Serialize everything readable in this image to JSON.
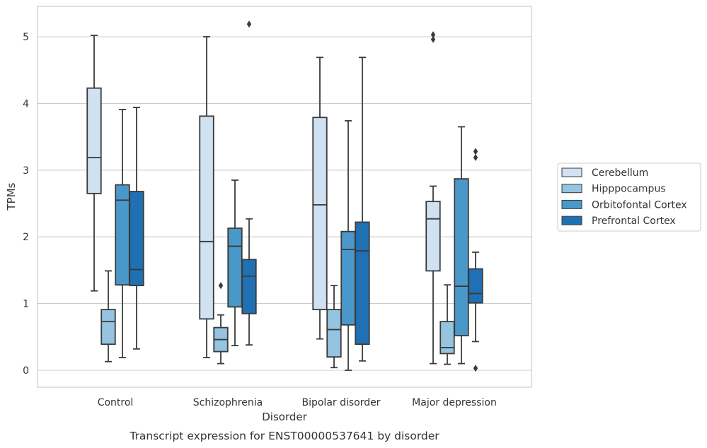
{
  "caption": "Transcript expression for ENST00000537641 by disorder",
  "chart_data": {
    "type": "boxplot",
    "xlabel": "Disorder",
    "ylabel": "TPMs",
    "ylim": [
      -0.25,
      5.45
    ],
    "yticks": [
      0,
      1,
      2,
      3,
      4,
      5
    ],
    "grid": "horizontal",
    "legend_position": "right",
    "categories": [
      "Control",
      "Schizophrenia",
      "Bipolar disorder",
      "Major depression"
    ],
    "series": [
      {
        "name": "Cerebellum",
        "color": "#d0e1f2",
        "boxes": [
          {
            "whislo": 1.19,
            "q1": 2.65,
            "med": 3.19,
            "q3": 4.23,
            "whishi": 5.02,
            "fliers": []
          },
          {
            "whislo": 0.19,
            "q1": 0.77,
            "med": 1.93,
            "q3": 3.81,
            "whishi": 5.0,
            "fliers": []
          },
          {
            "whislo": 0.47,
            "q1": 0.91,
            "med": 2.48,
            "q3": 3.79,
            "whishi": 4.69,
            "fliers": []
          },
          {
            "whislo": 0.1,
            "q1": 1.49,
            "med": 2.27,
            "q3": 2.53,
            "whishi": 2.76,
            "fliers": [
              4.96,
              5.03
            ]
          }
        ]
      },
      {
        "name": "Hipppocampus",
        "color": "#94c4df",
        "boxes": [
          {
            "whislo": 0.13,
            "q1": 0.39,
            "med": 0.73,
            "q3": 0.91,
            "whishi": 1.49,
            "fliers": []
          },
          {
            "whislo": 0.1,
            "q1": 0.28,
            "med": 0.46,
            "q3": 0.64,
            "whishi": 0.83,
            "fliers": [
              1.27
            ]
          },
          {
            "whislo": 0.04,
            "q1": 0.2,
            "med": 0.61,
            "q3": 0.91,
            "whishi": 1.27,
            "fliers": []
          },
          {
            "whislo": 0.09,
            "q1": 0.25,
            "med": 0.34,
            "q3": 0.73,
            "whishi": 1.28,
            "fliers": []
          }
        ]
      },
      {
        "name": "Orbitofontal Cortex",
        "color": "#4a98c9",
        "boxes": [
          {
            "whislo": 0.19,
            "q1": 1.28,
            "med": 2.55,
            "q3": 2.78,
            "whishi": 3.91,
            "fliers": []
          },
          {
            "whislo": 0.37,
            "q1": 0.95,
            "med": 1.86,
            "q3": 2.13,
            "whishi": 2.85,
            "fliers": []
          },
          {
            "whislo": 0.0,
            "q1": 0.68,
            "med": 1.81,
            "q3": 2.08,
            "whishi": 3.74,
            "fliers": []
          },
          {
            "whislo": 0.1,
            "q1": 0.52,
            "med": 1.26,
            "q3": 2.87,
            "whishi": 3.65,
            "fliers": []
          }
        ]
      },
      {
        "name": "Prefrontal Cortex",
        "color": "#2070b4",
        "boxes": [
          {
            "whislo": 0.32,
            "q1": 1.27,
            "med": 1.51,
            "q3": 2.68,
            "whishi": 3.94,
            "fliers": []
          },
          {
            "whislo": 0.38,
            "q1": 0.85,
            "med": 1.41,
            "q3": 1.66,
            "whishi": 2.27,
            "fliers": [
              5.19
            ]
          },
          {
            "whislo": 0.14,
            "q1": 0.39,
            "med": 1.79,
            "q3": 2.22,
            "whishi": 4.69,
            "fliers": []
          },
          {
            "whislo": 0.43,
            "q1": 1.01,
            "med": 1.15,
            "q3": 1.52,
            "whishi": 1.77,
            "fliers": [
              3.19,
              3.28,
              0.03
            ]
          }
        ]
      }
    ]
  }
}
